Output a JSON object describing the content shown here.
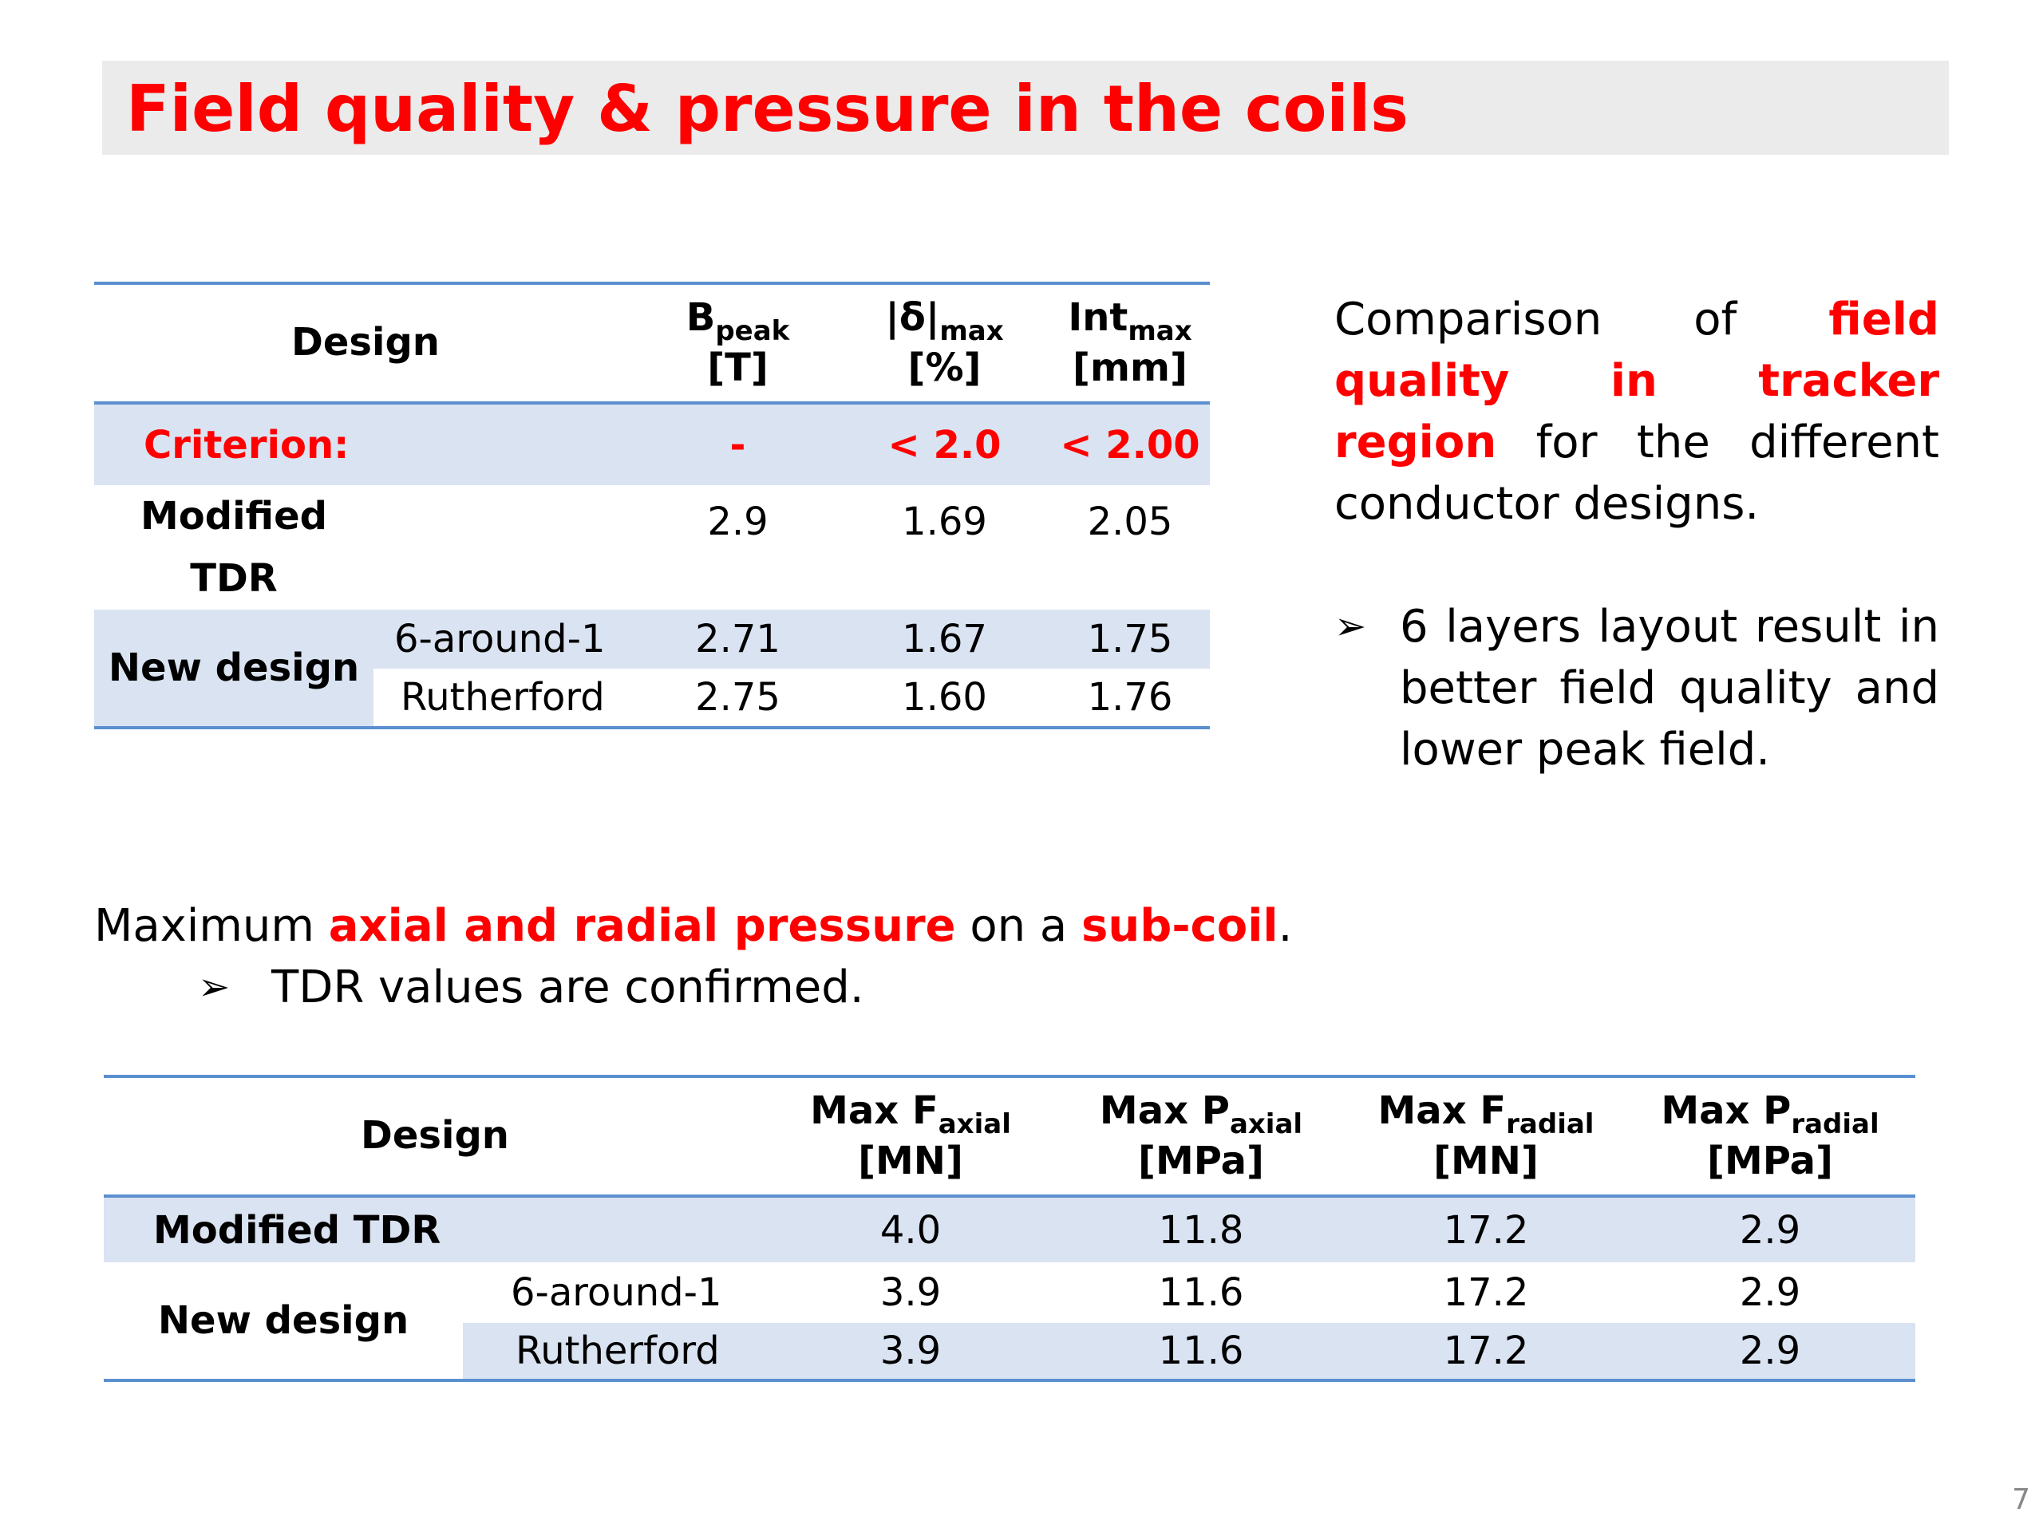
{
  "title": "Field quality & pressure in the coils",
  "table1": {
    "header": {
      "design": "Design",
      "col1_main": "B",
      "col1_sub": "peak",
      "col1_unit": "[T]",
      "col2_main": "|δ|",
      "col2_sub": "max",
      "col2_unit": "[%]",
      "col3_main": "Int",
      "col3_sub": "max",
      "col3_unit": "[mm]"
    },
    "criterion": {
      "label": "Criterion:",
      "v1": "-",
      "v2": "< 2.0",
      "v3": "< 2.00"
    },
    "modified": {
      "label_line1": "Modified",
      "label_line2": "TDR",
      "v1": "2.9",
      "v2": "1.69",
      "v3": "2.05"
    },
    "new_design": {
      "label": "New design",
      "rows": [
        {
          "name": "6-around-1",
          "v1": "2.71",
          "v2": "1.67",
          "v3": "1.75"
        },
        {
          "name": "Rutherford",
          "v1": "2.75",
          "v2": "1.60",
          "v3": "1.76"
        }
      ]
    }
  },
  "right_text": {
    "p1_a": "Comparison of ",
    "p1_red": "field quality in tracker region",
    "p1_b": " for the different conductor designs.",
    "bullet_arrow": "➢",
    "bullet": "6 layers layout result in better field quality and lower peak field."
  },
  "mid_text": {
    "a": "Maximum ",
    "red1": "axial and radial pressure",
    "b": " on a ",
    "red2": "sub-coil",
    "c": ".",
    "bullet_arrow": "➢",
    "bullet": "TDR values are confirmed."
  },
  "table2": {
    "header": {
      "design": "Design",
      "c1_main": "Max F",
      "c1_sub": "axial",
      "c1_unit": "[MN]",
      "c2_main": "Max P",
      "c2_sub": "axial",
      "c2_unit": "[MPa]",
      "c3_main": "Max F",
      "c3_sub": "radial",
      "c3_unit": "[MN]",
      "c4_main": "Max P",
      "c4_sub": "radial",
      "c4_unit": "[MPa]"
    },
    "modified": {
      "label": "Modified TDR",
      "v1": "4.0",
      "v2": "11.8",
      "v3": "17.2",
      "v4": "2.9"
    },
    "new_design": {
      "label": "New design",
      "rows": [
        {
          "name": "6-around-1",
          "v1": "3.9",
          "v2": "11.6",
          "v3": "17.2",
          "v4": "2.9"
        },
        {
          "name": "Rutherford",
          "v1": "3.9",
          "v2": "11.6",
          "v3": "17.2",
          "v4": "2.9"
        }
      ]
    }
  },
  "page_number": "7"
}
